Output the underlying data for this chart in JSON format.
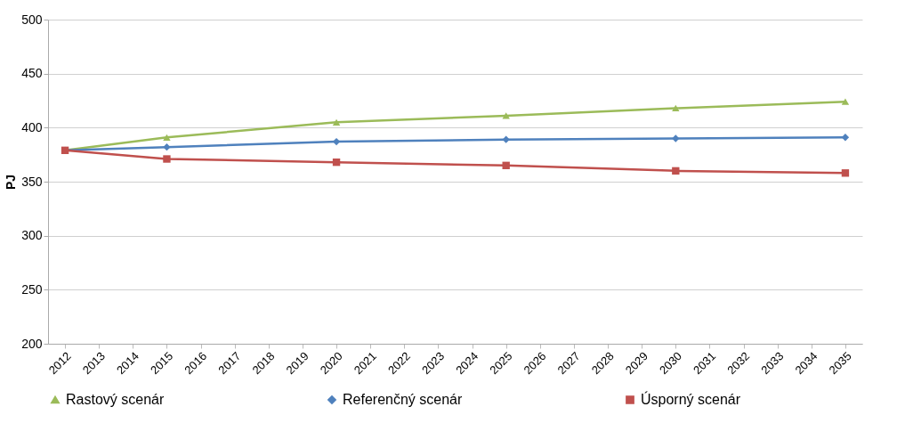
{
  "chart_data": {
    "type": "line",
    "ylabel": "PJ",
    "x": [
      2012,
      2015,
      2020,
      2025,
      2030,
      2035
    ],
    "xlim": [
      2011.5,
      2035.5
    ],
    "xticks": [
      2012,
      2013,
      2014,
      2015,
      2016,
      2017,
      2018,
      2019,
      2020,
      2021,
      2022,
      2023,
      2024,
      2025,
      2026,
      2027,
      2028,
      2029,
      2030,
      2031,
      2032,
      2033,
      2034,
      2035
    ],
    "ylim": [
      200,
      500
    ],
    "yticks": [
      200,
      250,
      300,
      350,
      400,
      450,
      500
    ],
    "grid": "y",
    "legend": "bottom",
    "line_style": "solid",
    "series": [
      {
        "name": "Rastový scenár",
        "color": "#9bbb59",
        "marker": "triangle",
        "values": [
          379,
          391,
          405,
          411,
          418,
          424
        ]
      },
      {
        "name": "Referenčný scenár",
        "color": "#4f81bd",
        "marker": "diamond",
        "values": [
          379,
          382,
          387,
          389,
          390,
          391
        ]
      },
      {
        "name": "Úsporný scenár",
        "color": "#c0504d",
        "marker": "square",
        "values": [
          379,
          371,
          368,
          365,
          360,
          358
        ]
      }
    ]
  }
}
